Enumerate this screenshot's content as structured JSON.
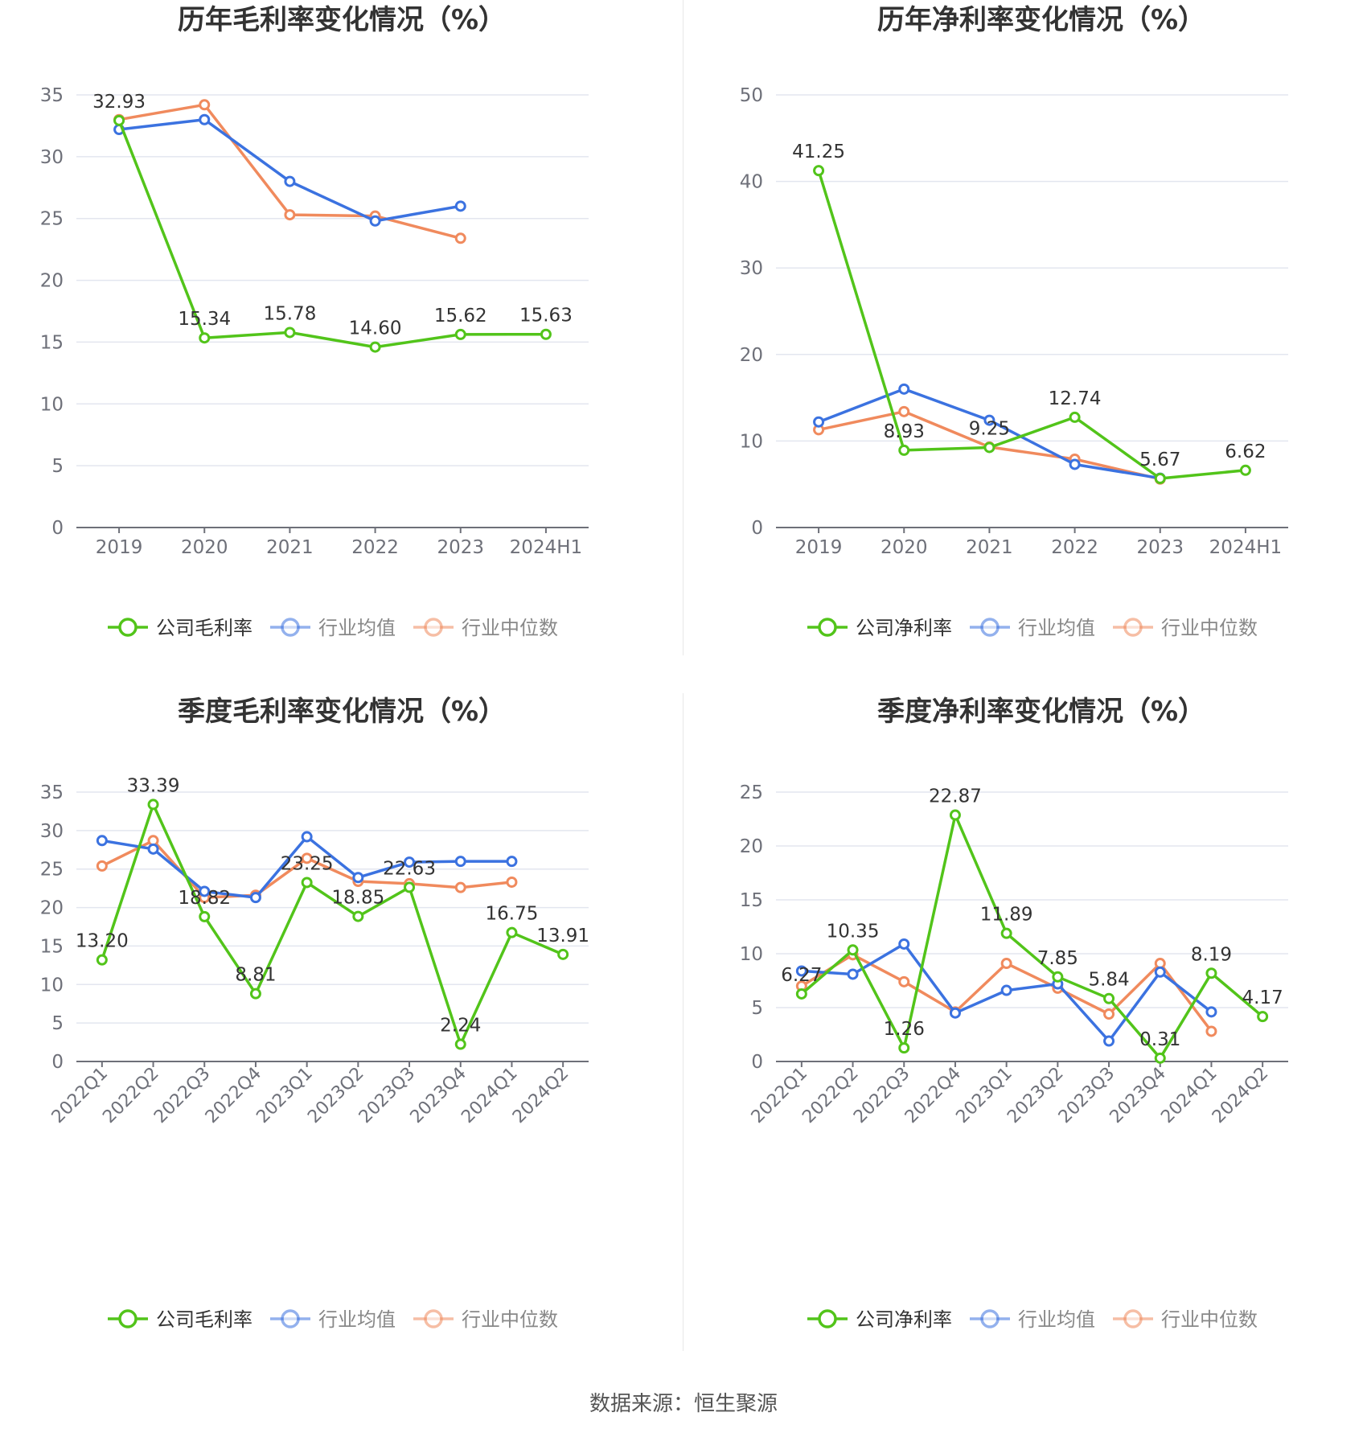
{
  "source_text": "数据来源：恒生聚源",
  "colors": {
    "company": "#52c41a",
    "avg": "#3b72e0",
    "median": "#f08a5d",
    "grid": "#e3e6ef",
    "axis": "#6e7079",
    "label": "#333333"
  },
  "chart_data": [
    {
      "type": "line",
      "title": "历年毛利率变化情况（%）",
      "categories": [
        "2019",
        "2020",
        "2021",
        "2022",
        "2023",
        "2024H1"
      ],
      "ylim": [
        0,
        35
      ],
      "yticks": [
        0,
        5,
        10,
        15,
        20,
        25,
        30,
        35
      ],
      "rotate_x": false,
      "legend_position": "bottom",
      "series": [
        {
          "name": "公司毛利率",
          "key": "company",
          "values": [
            32.93,
            15.34,
            15.78,
            14.6,
            15.62,
            15.63
          ],
          "labels": [
            "32.93",
            "15.34",
            "15.78",
            "14.60",
            "15.62",
            "15.63"
          ]
        },
        {
          "name": "行业均值",
          "key": "avg",
          "values": [
            32.2,
            33.0,
            28.0,
            24.8,
            26.0,
            null
          ]
        },
        {
          "name": "行业中位数",
          "key": "median",
          "values": [
            33.0,
            34.2,
            25.3,
            25.2,
            23.4,
            null
          ]
        }
      ]
    },
    {
      "type": "line",
      "title": "历年净利率变化情况（%）",
      "categories": [
        "2019",
        "2020",
        "2021",
        "2022",
        "2023",
        "2024H1"
      ],
      "ylim": [
        0,
        50
      ],
      "yticks": [
        0,
        10,
        20,
        30,
        40,
        50
      ],
      "rotate_x": false,
      "legend_position": "bottom",
      "series": [
        {
          "name": "公司净利率",
          "key": "company",
          "values": [
            41.25,
            8.93,
            9.25,
            12.74,
            5.67,
            6.62
          ],
          "labels": [
            "41.25",
            "8.93",
            "9.25",
            "12.74",
            "5.67",
            "6.62"
          ]
        },
        {
          "name": "行业均值",
          "key": "avg",
          "values": [
            12.2,
            16.0,
            12.4,
            7.3,
            5.7,
            null
          ]
        },
        {
          "name": "行业中位数",
          "key": "median",
          "values": [
            11.3,
            13.4,
            9.3,
            7.9,
            5.6,
            null
          ]
        }
      ]
    },
    {
      "type": "line",
      "title": "季度毛利率变化情况（%）",
      "categories": [
        "2022Q1",
        "2022Q2",
        "2022Q3",
        "2022Q4",
        "2023Q1",
        "2023Q2",
        "2023Q3",
        "2023Q4",
        "2024Q1",
        "2024Q2"
      ],
      "ylim": [
        0,
        35
      ],
      "yticks": [
        0,
        5,
        10,
        15,
        20,
        25,
        30,
        35
      ],
      "rotate_x": true,
      "legend_position": "bottom",
      "series": [
        {
          "name": "公司毛利率",
          "key": "company",
          "values": [
            13.2,
            33.39,
            18.82,
            8.81,
            23.25,
            18.85,
            22.63,
            2.24,
            16.75,
            13.91
          ],
          "labels": [
            "13.20",
            "33.39",
            "18.82",
            "8.81",
            "23.25",
            "18.85",
            "22.63",
            "2.24",
            "16.75",
            "13.91"
          ]
        },
        {
          "name": "行业均值",
          "key": "avg",
          "values": [
            28.7,
            27.6,
            22.1,
            21.3,
            29.2,
            23.9,
            25.9,
            26.0,
            26.0,
            null
          ]
        },
        {
          "name": "行业中位数",
          "key": "median",
          "values": [
            25.4,
            28.7,
            21.3,
            21.6,
            26.4,
            23.4,
            23.1,
            22.6,
            23.3,
            null
          ]
        }
      ]
    },
    {
      "type": "line",
      "title": "季度净利率变化情况（%）",
      "categories": [
        "2022Q1",
        "2022Q2",
        "2022Q3",
        "2022Q4",
        "2023Q1",
        "2023Q2",
        "2023Q3",
        "2023Q4",
        "2024Q1",
        "2024Q2"
      ],
      "ylim": [
        0,
        25
      ],
      "yticks": [
        0,
        5,
        10,
        15,
        20,
        25
      ],
      "rotate_x": true,
      "legend_position": "bottom",
      "series": [
        {
          "name": "公司净利率",
          "key": "company",
          "values": [
            6.27,
            10.35,
            1.26,
            22.87,
            11.89,
            7.85,
            5.84,
            0.31,
            8.19,
            4.17
          ],
          "labels": [
            "6.27",
            "10.35",
            "1.26",
            "22.87",
            "11.89",
            "7.85",
            "5.84",
            "0.31",
            "8.19",
            "4.17"
          ]
        },
        {
          "name": "行业均值",
          "key": "avg",
          "values": [
            8.4,
            8.1,
            10.9,
            4.5,
            6.6,
            7.2,
            1.9,
            8.3,
            4.6,
            null
          ]
        },
        {
          "name": "行业中位数",
          "key": "median",
          "values": [
            7.0,
            9.9,
            7.4,
            4.6,
            9.1,
            6.8,
            4.4,
            9.1,
            2.8,
            null
          ]
        }
      ]
    }
  ]
}
